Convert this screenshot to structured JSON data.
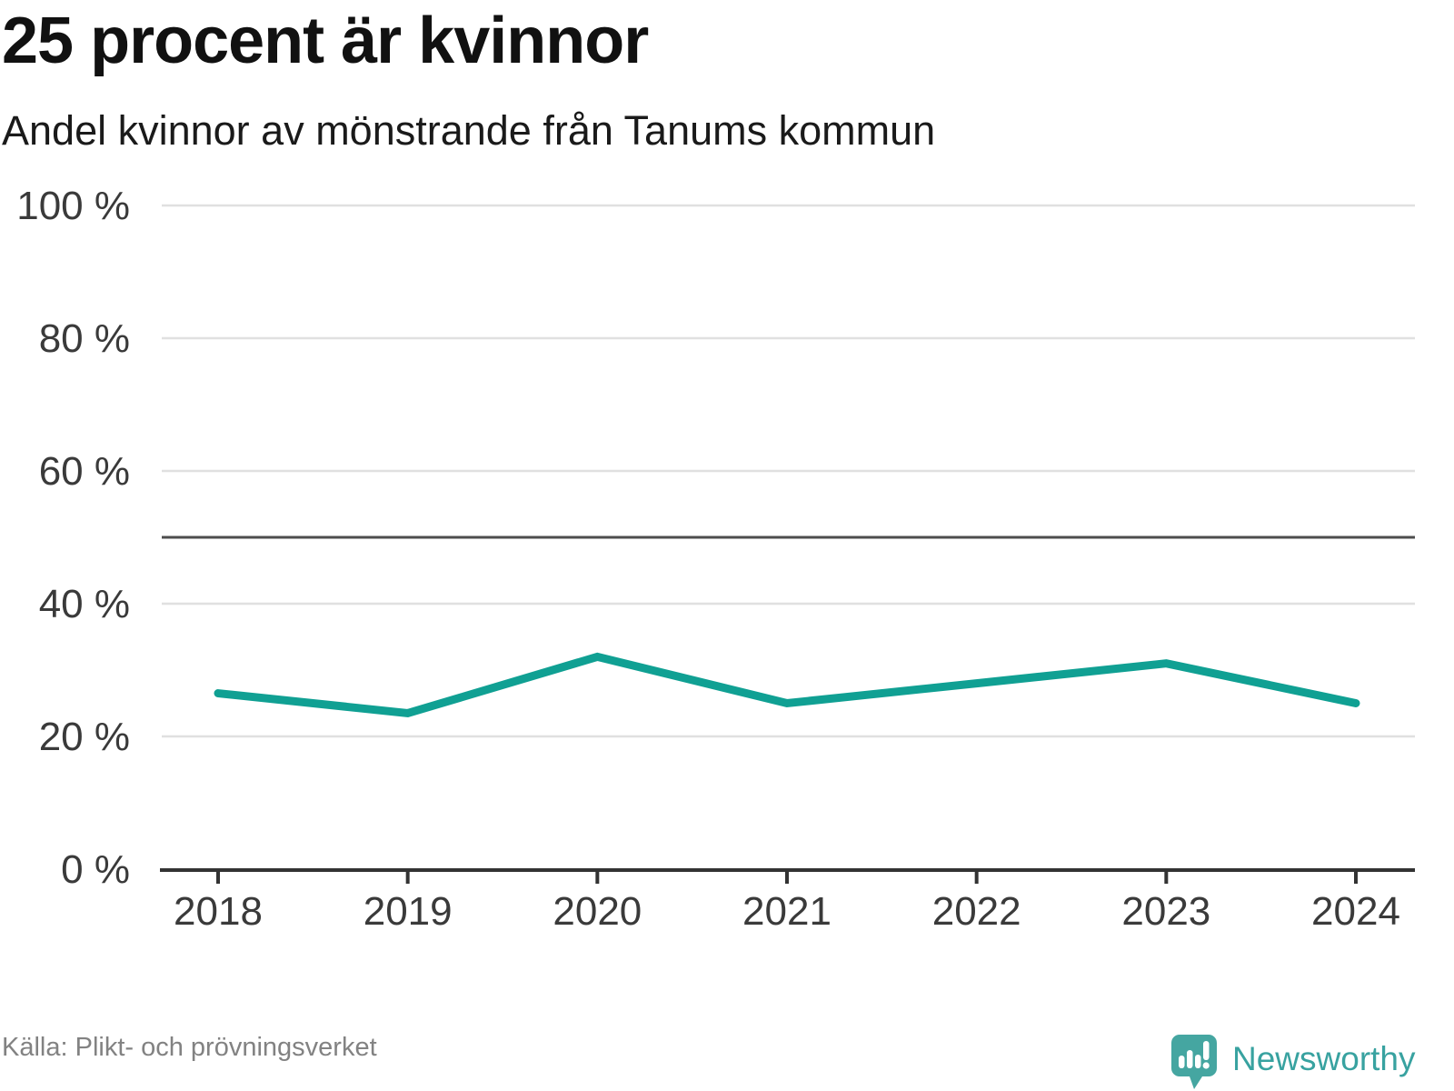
{
  "header": {
    "title": "25 procent är kvinnor",
    "subtitle": "Andel kvinnor av mönstrande från Tanums kommun"
  },
  "chart_data": {
    "type": "line",
    "title": "25 procent är kvinnor",
    "subtitle": "Andel kvinnor av mönstrande från Tanums kommun",
    "categories": [
      "2018",
      "2019",
      "2020",
      "2021",
      "2022",
      "2023",
      "2024"
    ],
    "series": [
      {
        "name": "Andel kvinnor av mönstrande",
        "values": [
          26.5,
          23.5,
          32,
          25,
          28,
          31,
          25
        ]
      }
    ],
    "xlabel": "",
    "ylabel": "",
    "ylim": [
      0,
      100
    ],
    "yticks": [
      0,
      20,
      40,
      60,
      80,
      100
    ],
    "ytick_suffix": " %",
    "reference_line": 50,
    "grid": "horizontal",
    "legend": "none"
  },
  "footer": {
    "source": "Källa: Plikt- och prövningsverket",
    "brand": "Newsworthy"
  },
  "icons": {
    "logo": "newsworthy-speech-bubble-chart-icon"
  },
  "colors": {
    "line": "#10a093",
    "grid": "#e0e0e0",
    "reference_line": "#4d4d4d",
    "axis": "#333333",
    "tick_text": "#3a3a3a",
    "title_text": "#111111",
    "subtitle_text": "#1a1a1a",
    "source_text": "#828282",
    "logo_teal": "#45a6a1",
    "brand_text": "#38a2a0"
  }
}
